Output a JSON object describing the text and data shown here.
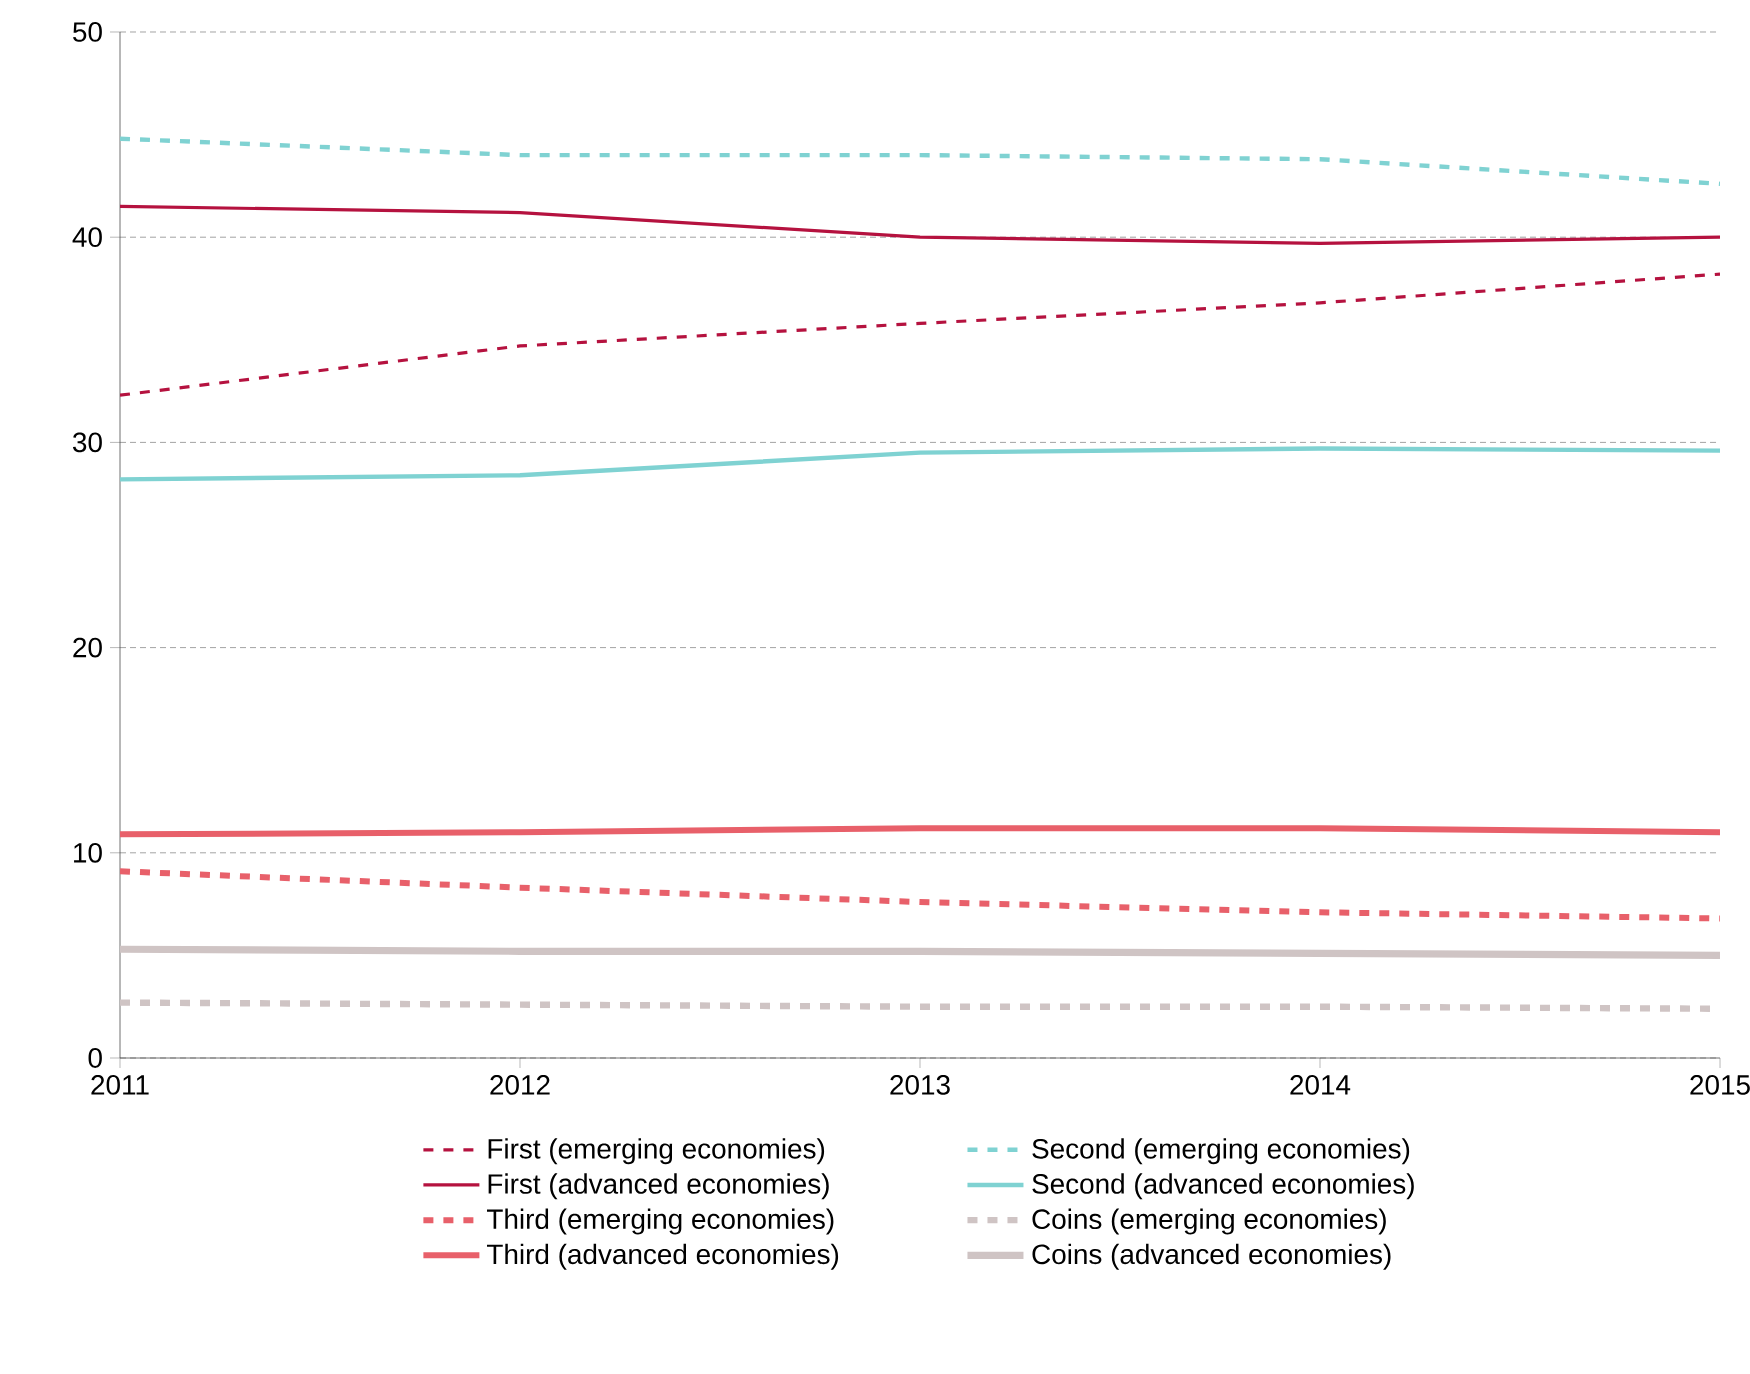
{
  "chart_data": {
    "type": "line",
    "categories": [
      "2011",
      "2012",
      "2013",
      "2014",
      "2015"
    ],
    "ylim": [
      0,
      50
    ],
    "yticks": [
      0,
      10,
      20,
      30,
      40,
      50
    ],
    "grid": "y",
    "legend": "bottom",
    "series": [
      {
        "name": "First (emerging economies)",
        "color": "#b5123f",
        "line_style": "dashed",
        "values": [
          32.3,
          34.7,
          35.8,
          36.8,
          38.2
        ]
      },
      {
        "name": "Second (emerging economies)",
        "color": "#7fd2d2",
        "line_style": "dashed",
        "values": [
          44.8,
          44.0,
          44.0,
          43.8,
          42.6
        ]
      },
      {
        "name": "First (advanced economies)",
        "color": "#b5123f",
        "line_style": "solid",
        "values": [
          41.5,
          41.2,
          40.0,
          39.7,
          40.0
        ]
      },
      {
        "name": "Second (advanced economies)",
        "color": "#7fd2d2",
        "line_style": "solid",
        "values": [
          28.2,
          28.4,
          29.5,
          29.7,
          29.6
        ]
      },
      {
        "name": "Third (emerging economies)",
        "color": "#e8606a",
        "line_style": "dashed",
        "values": [
          9.1,
          8.3,
          7.6,
          7.1,
          6.8
        ]
      },
      {
        "name": "Coins (emerging economies)",
        "color": "#cfc4c4",
        "line_style": "dashed",
        "values": [
          2.7,
          2.6,
          2.5,
          2.5,
          2.4
        ]
      },
      {
        "name": "Third (advanced economies)",
        "color": "#e8606a",
        "line_style": "solid",
        "values": [
          10.9,
          11.0,
          11.2,
          11.2,
          11.0
        ]
      },
      {
        "name": "Coins (advanced economies)",
        "color": "#cfc4c4",
        "line_style": "solid",
        "values": [
          5.3,
          5.2,
          5.2,
          5.1,
          5.0
        ]
      }
    ]
  }
}
